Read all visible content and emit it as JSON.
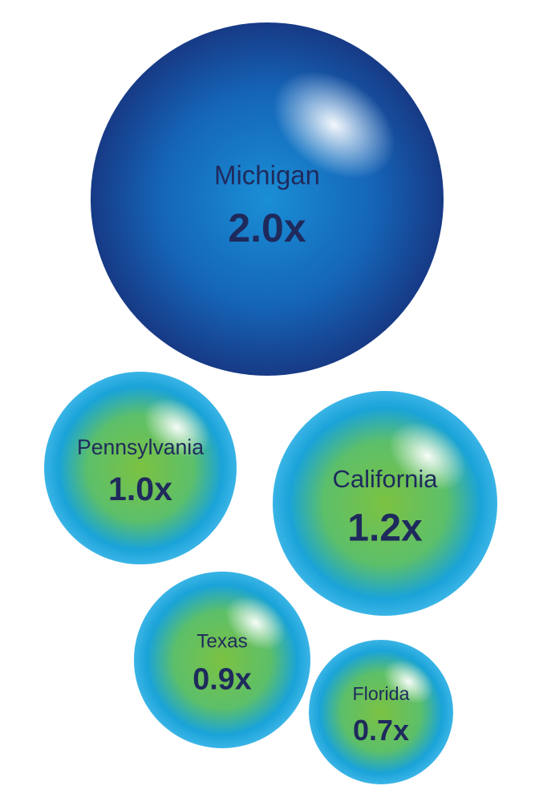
{
  "chart_data": {
    "type": "bubble",
    "categories": [
      "Michigan",
      "Pennsylvania",
      "California",
      "Texas",
      "Florida"
    ],
    "values": [
      2.0,
      1.0,
      1.2,
      0.9,
      0.7
    ],
    "value_labels": [
      "2.0x",
      "1.0x",
      "1.2x",
      "0.9x",
      "0.7x"
    ],
    "colors": [
      "#1565b8",
      "#7cc242",
      "#7cc242",
      "#7cc242",
      "#7cc242"
    ]
  }
}
